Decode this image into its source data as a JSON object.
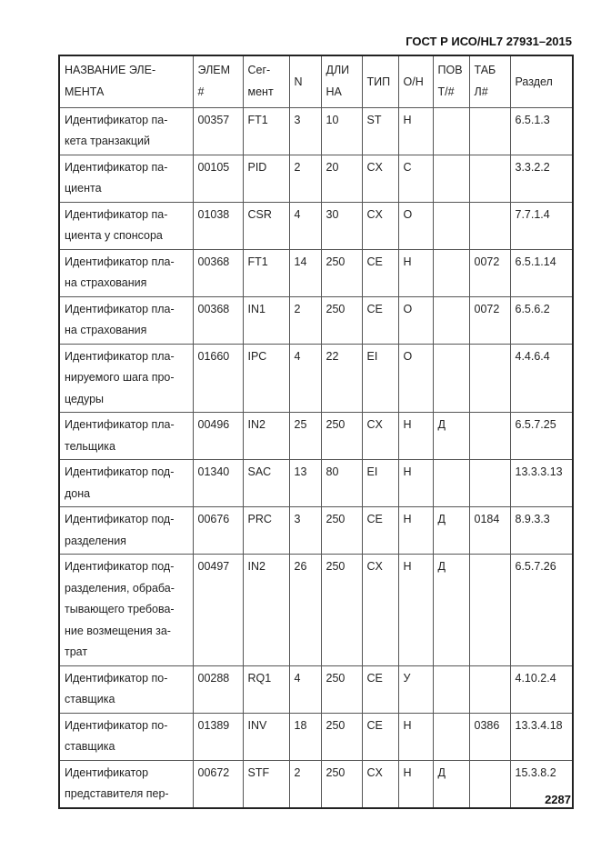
{
  "header": {
    "title": "ГОСТ Р ИСО/HL7 27931–2015"
  },
  "footer": {
    "page_number": "2287"
  },
  "table": {
    "columns": [
      "НАЗВАНИЕ ЭЛЕ-\nМЕНТА",
      "ЭЛЕМ\n#",
      "Сег-\nмент",
      "N",
      "ДЛИ\nНА",
      "ТИП",
      "О/Н",
      "ПОВ\nТ/#",
      "ТАБ\nЛ#",
      "Раздел"
    ],
    "rows": [
      [
        "Идентификатор па-\nкета транзакций",
        "00357",
        "FT1",
        "3",
        "10",
        "ST",
        "Н",
        "",
        "",
        "6.5.1.3"
      ],
      [
        "Идентификатор па-\nциента",
        "00105",
        "PID",
        "2",
        "20",
        "CX",
        "С",
        "",
        "",
        "3.3.2.2"
      ],
      [
        "Идентификатор па-\nциента у спонсора",
        "01038",
        "CSR",
        "4",
        "30",
        "CX",
        "О",
        "",
        "",
        "7.7.1.4"
      ],
      [
        "Идентификатор пла-\nна страхования",
        "00368",
        "FT1",
        "14",
        "250",
        "CE",
        "Н",
        "",
        "0072",
        "6.5.1.14"
      ],
      [
        "Идентификатор пла-\nна страхования",
        "00368",
        "IN1",
        "2",
        "250",
        "CE",
        "О",
        "",
        "0072",
        "6.5.6.2"
      ],
      [
        "Идентификатор пла-\nнируемого шага про-\nцедуры",
        "01660",
        "IPC",
        "4",
        "22",
        "EI",
        "О",
        "",
        "",
        "4.4.6.4"
      ],
      [
        "Идентификатор пла-\nтельщика",
        "00496",
        "IN2",
        "25",
        "250",
        "CX",
        "Н",
        "Д",
        "",
        "6.5.7.25"
      ],
      [
        "Идентификатор под-\nдона",
        "01340",
        "SAC",
        "13",
        "80",
        "EI",
        "Н",
        "",
        "",
        "13.3.3.13"
      ],
      [
        "Идентификатор под-\nразделения",
        "00676",
        "PRC",
        "3",
        "250",
        "CE",
        "Н",
        "Д",
        "0184",
        "8.9.3.3"
      ],
      [
        "Идентификатор под-\nразделения, обраба-\nтывающего требова-\nние возмещения за-\nтрат",
        "00497",
        "IN2",
        "26",
        "250",
        "CX",
        "Н",
        "Д",
        "",
        "6.5.7.26"
      ],
      [
        "Идентификатор по-\nставщика",
        "00288",
        "RQ1",
        "4",
        "250",
        "CE",
        "У",
        "",
        "",
        "4.10.2.4"
      ],
      [
        "Идентификатор по-\nставщика",
        "01389",
        "INV",
        "18",
        "250",
        "CE",
        "Н",
        "",
        "0386",
        "13.3.4.18"
      ],
      [
        "Идентификатор\nпредставителя пер-",
        "00672",
        "STF",
        "2",
        "250",
        "CX",
        "Н",
        "Д",
        "",
        "15.3.8.2"
      ]
    ]
  }
}
